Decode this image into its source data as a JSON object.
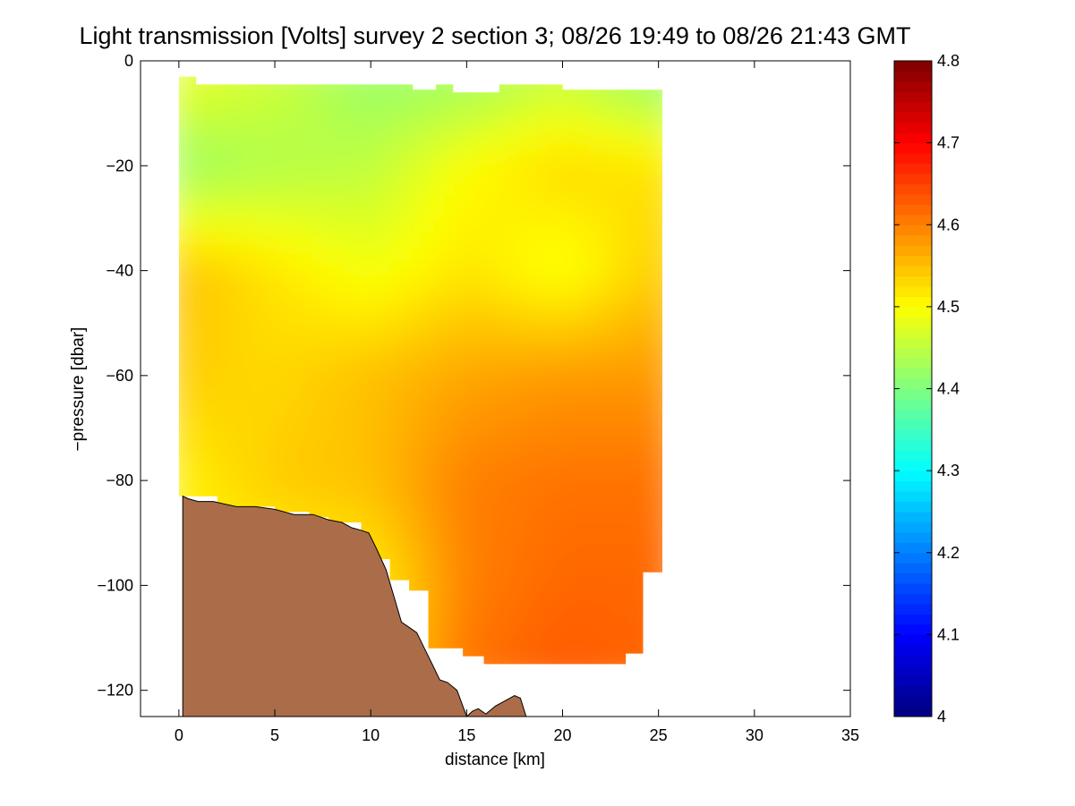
{
  "chart_data": {
    "type": "heatmap",
    "title": "Light transmission [Volts] survey 2 section 3; 08/26 19:49 to 08/26 21:43 GMT",
    "xlabel": "distance [km]",
    "ylabel": "−pressure [dbar]",
    "xlim": [
      -2,
      35
    ],
    "ylim": [
      -125,
      0
    ],
    "x_ticks": [
      0,
      5,
      10,
      15,
      20,
      25,
      30,
      35
    ],
    "x_tick_labels": [
      "0",
      "5",
      "10",
      "15",
      "20",
      "25",
      "30",
      "35"
    ],
    "y_ticks": [
      0,
      -20,
      -40,
      -60,
      -80,
      -100,
      -120
    ],
    "y_tick_labels": [
      "0",
      "−20",
      "−40",
      "−60",
      "−80",
      "−100",
      "−120"
    ],
    "colorbar": {
      "range": [
        4.0,
        4.8
      ],
      "colormap": "jet",
      "ticks": [
        4.0,
        4.1,
        4.2,
        4.3,
        4.4,
        4.5,
        4.6,
        4.7,
        4.8
      ],
      "tick_labels": [
        "4",
        "4.1",
        "4.2",
        "4.3",
        "4.4",
        "4.5",
        "4.6",
        "4.7",
        "4.8"
      ]
    },
    "grid": false,
    "data_extent": {
      "x": [
        0,
        25.2
      ],
      "y_top": [
        -3,
        -6
      ],
      "y_bottom_max": -115
    },
    "field": {
      "x": [
        0,
        5,
        10,
        15,
        20,
        25
      ],
      "y": [
        -5,
        -20,
        -40,
        -60,
        -80,
        -100,
        -115
      ],
      "values": [
        [
          4.48,
          4.46,
          4.42,
          4.43,
          4.46,
          4.42
        ],
        [
          4.42,
          4.44,
          4.45,
          4.5,
          4.53,
          4.52
        ],
        [
          4.55,
          4.52,
          4.49,
          4.52,
          4.49,
          4.54
        ],
        [
          4.54,
          4.53,
          4.55,
          4.57,
          4.58,
          4.58
        ],
        [
          4.51,
          4.54,
          4.55,
          4.6,
          4.61,
          4.61
        ],
        [
          4.5,
          4.5,
          4.51,
          4.6,
          4.62,
          4.62
        ],
        [
          4.5,
          4.5,
          4.51,
          4.61,
          4.63,
          4.62
        ]
      ]
    },
    "bottom_profile": {
      "color": "#ab6c4a",
      "x": [
        0.2,
        0.5,
        1.0,
        1.8,
        3.0,
        4.0,
        5.0,
        6.0,
        7.0,
        7.8,
        8.5,
        9.0,
        9.5,
        9.9,
        10.3,
        10.8,
        11.2,
        11.6,
        12.0,
        12.4,
        12.8,
        13.2,
        13.6,
        14.0,
        14.5,
        15.0,
        15.3,
        15.6,
        16.0,
        16.5,
        17.0,
        17.5,
        17.8,
        18.1
      ],
      "depth": [
        -83,
        -83.5,
        -84,
        -84,
        -85,
        -85,
        -85.5,
        -86.5,
        -86.5,
        -87.5,
        -88,
        -89,
        -89.5,
        -90,
        -93,
        -97,
        -102,
        -107,
        -108,
        -109,
        -112,
        -115,
        -118,
        -118.5,
        -120,
        -125,
        -124,
        -123.5,
        -124.5,
        -123,
        -122,
        -121,
        -121.5,
        -125
      ]
    }
  }
}
